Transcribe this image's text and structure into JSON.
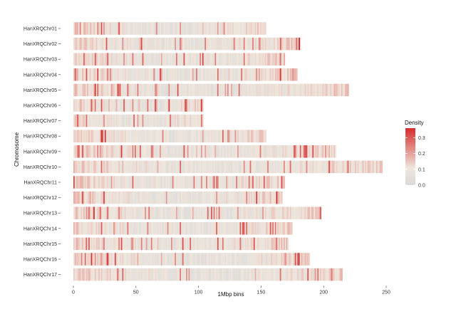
{
  "chart_data": {
    "type": "heatmap",
    "title": "",
    "xlabel": "1Mbp bins",
    "ylabel": "Chromosome",
    "xlim": [
      0,
      250
    ],
    "xticks": [
      0,
      50,
      100,
      150,
      200,
      250
    ],
    "grid": false,
    "legend": {
      "title": "Density",
      "position": "right",
      "ticks": [
        0.0,
        0.1,
        0.2,
        0.3
      ],
      "tick_labels": [
        "0.0",
        "0.1",
        "0.2",
        "0.3"
      ],
      "range": [
        0.0,
        0.36
      ],
      "color_low": "#d9d9d9",
      "color_mid": "#efe6dc",
      "color_high": "#d62c2c"
    },
    "chromosomes": [
      {
        "name": "HanXRQChr01",
        "length_mbp": 154
      },
      {
        "name": "HanXRQChr02",
        "length_mbp": 181
      },
      {
        "name": "HanXRQChr03",
        "length_mbp": 169
      },
      {
        "name": "HanXRQChr04",
        "length_mbp": 179
      },
      {
        "name": "HanXRQChr05",
        "length_mbp": 220
      },
      {
        "name": "HanXRQChr06",
        "length_mbp": 104
      },
      {
        "name": "HanXRQChr07",
        "length_mbp": 104
      },
      {
        "name": "HanXRQChr08",
        "length_mbp": 154
      },
      {
        "name": "HanXRQChr09",
        "length_mbp": 210
      },
      {
        "name": "HanXRQChr10",
        "length_mbp": 247
      },
      {
        "name": "HanXRQChr11",
        "length_mbp": 169
      },
      {
        "name": "HanXRQChr12",
        "length_mbp": 167
      },
      {
        "name": "HanXRQChr13",
        "length_mbp": 198
      },
      {
        "name": "HanXRQChr14",
        "length_mbp": 175
      },
      {
        "name": "HanXRQChr15",
        "length_mbp": 172
      },
      {
        "name": "HanXRQChr16",
        "length_mbp": 189
      },
      {
        "name": "HanXRQChr17",
        "length_mbp": 215
      }
    ]
  }
}
